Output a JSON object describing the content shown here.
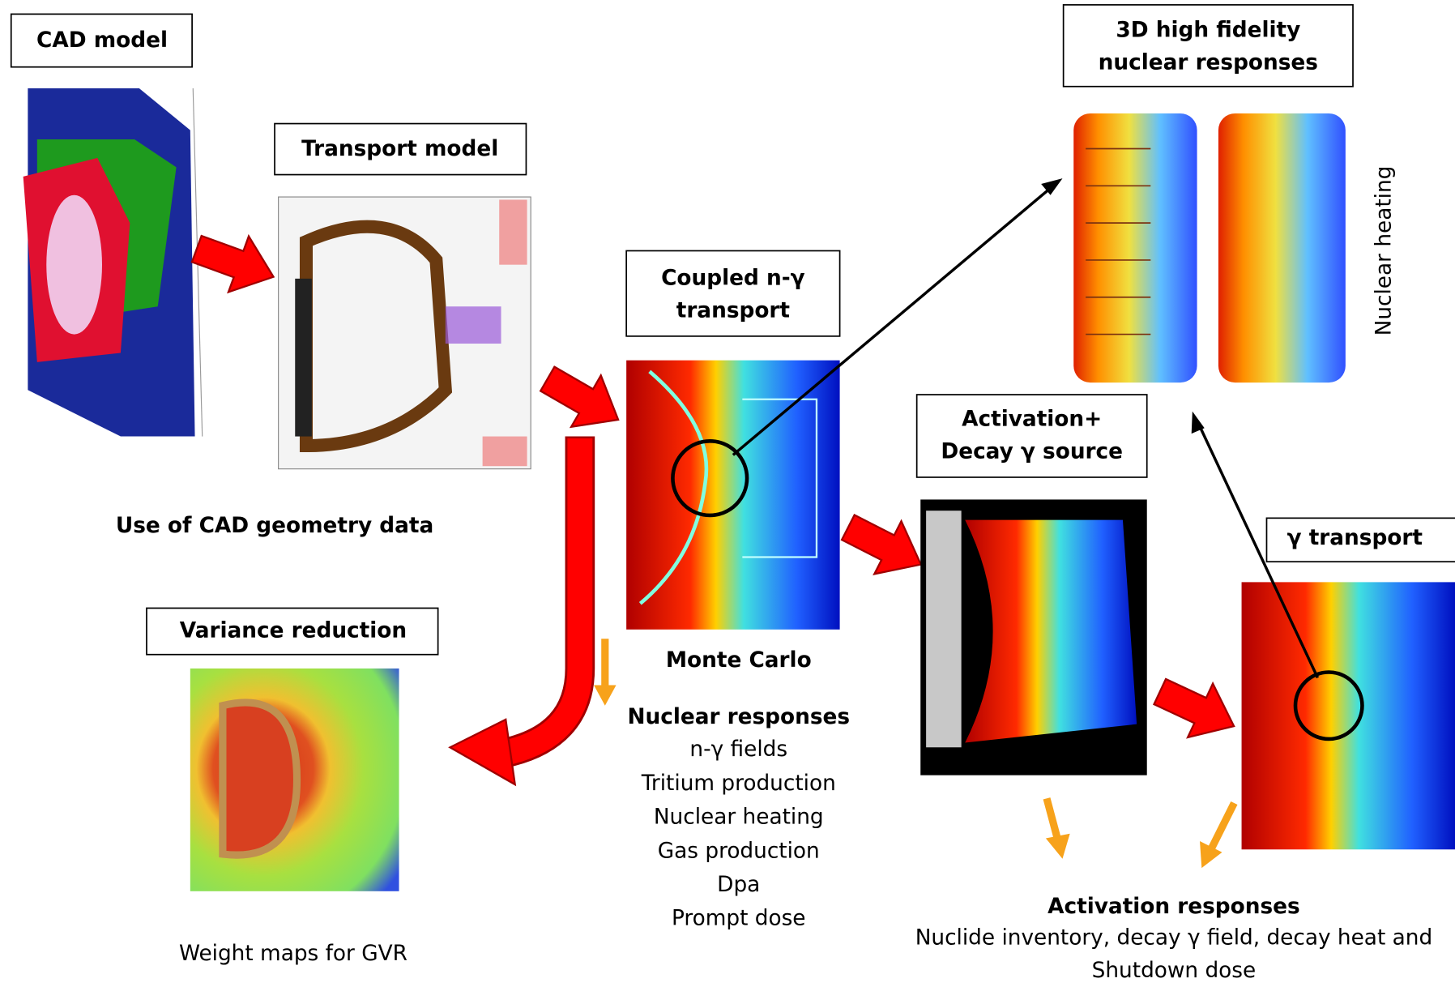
{
  "cad_model": {
    "title": "CAD model",
    "caption": "Use of CAD geometry data"
  },
  "transport_model": {
    "title": "Transport model"
  },
  "coupled_transport": {
    "title": [
      "Coupled n-γ",
      "transport"
    ],
    "caption": "Monte Carlo",
    "responses_title": "Nuclear responses",
    "responses": [
      "n-γ fields",
      "Tritium production",
      "Nuclear heating",
      "Gas production",
      "Dpa",
      "Prompt dose"
    ]
  },
  "variance_reduction": {
    "title": "Variance reduction",
    "caption": "Weight maps for GVR"
  },
  "high_fidelity": {
    "title": [
      "3D high fidelity",
      "nuclear responses"
    ],
    "side_label": "Nuclear heating"
  },
  "activation": {
    "title": [
      "Activation+",
      "Decay γ source"
    ],
    "responses_title": "Activation responses",
    "responses": [
      "Nuclide inventory, decay γ field, decay heat and",
      "Shutdown dose"
    ]
  },
  "gamma_transport": {
    "title": "γ transport"
  }
}
